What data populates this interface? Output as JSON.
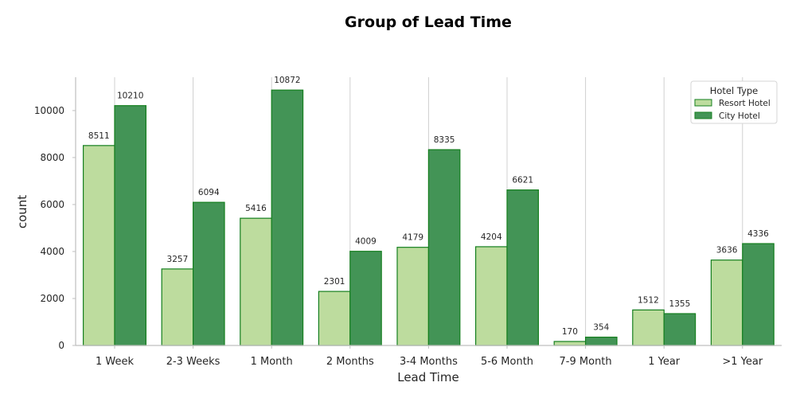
{
  "chart_data": {
    "type": "bar",
    "title": "Group of Lead Time",
    "xlabel": "Lead Time",
    "ylabel": "count",
    "categories": [
      "1 Week",
      "2-3 Weeks",
      "1 Month",
      "2 Months",
      "3-4 Months",
      "5-6 Month",
      "7-9 Month",
      "1 Year",
      ">1 Year"
    ],
    "series": [
      {
        "name": "Resort Hotel",
        "color": "#bddc9e",
        "values": [
          8511,
          3257,
          5416,
          2301,
          4179,
          4204,
          170,
          1512,
          3636
        ]
      },
      {
        "name": "City Hotel",
        "color": "#439456",
        "values": [
          10210,
          6094,
          10872,
          4009,
          8335,
          6621,
          354,
          1355,
          4336
        ]
      }
    ],
    "edge_color": "#157f1f",
    "ylim": [
      0,
      11420
    ],
    "yticks": [
      0,
      2000,
      4000,
      6000,
      8000,
      10000
    ],
    "grid": "vertical",
    "legend": {
      "title": "Hotel Type",
      "placement": "top-right"
    }
  }
}
